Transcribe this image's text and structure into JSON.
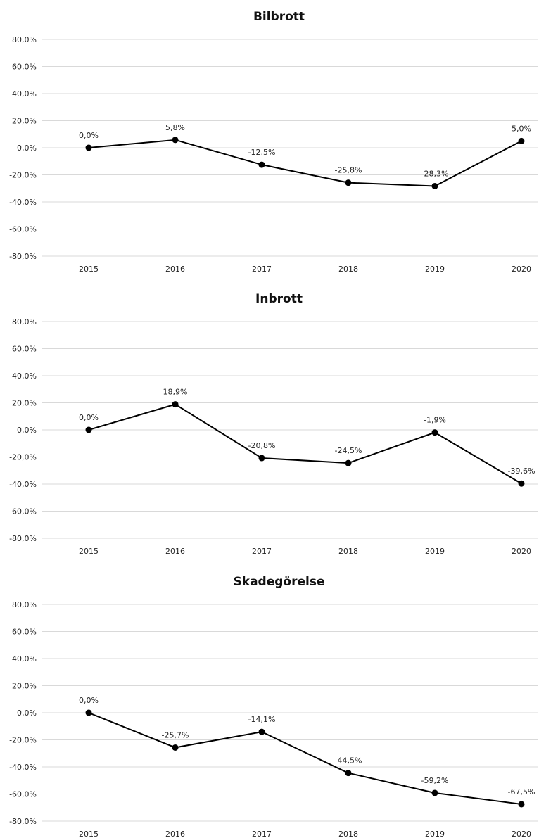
{
  "chart_data": [
    {
      "type": "line",
      "title": "Bilbrott",
      "categories": [
        "2015",
        "2016",
        "2017",
        "2018",
        "2019",
        "2020"
      ],
      "values": [
        0.0,
        5.8,
        -12.5,
        -25.8,
        -28.3,
        5.0
      ],
      "labels": [
        "0,0%",
        "5,8%",
        "-12,5%",
        "-25,8%",
        "-28,3%",
        "5,0%"
      ],
      "ylim": [
        -80,
        80
      ],
      "yticks": [
        "80,0%",
        "60,0%",
        "40,0%",
        "20,0%",
        "0,0%",
        "-20,0%",
        "-40,0%",
        "-60,0%",
        "-80,0%"
      ],
      "grid": true
    },
    {
      "type": "line",
      "title": "Inbrott",
      "categories": [
        "2015",
        "2016",
        "2017",
        "2018",
        "2019",
        "2020"
      ],
      "values": [
        0.0,
        18.9,
        -20.8,
        -24.5,
        -1.9,
        -39.6
      ],
      "labels": [
        "0,0%",
        "18,9%",
        "-20,8%",
        "-24,5%",
        "-1,9%",
        "-39,6%"
      ],
      "ylim": [
        -80,
        80
      ],
      "yticks": [
        "80,0%",
        "60,0%",
        "40,0%",
        "20,0%",
        "0,0%",
        "-20,0%",
        "-40,0%",
        "-60,0%",
        "-80,0%"
      ],
      "grid": true
    },
    {
      "type": "line",
      "title": "Skadegörelse",
      "categories": [
        "2015",
        "2016",
        "2017",
        "2018",
        "2019",
        "2020"
      ],
      "values": [
        0.0,
        -25.7,
        -14.1,
        -44.5,
        -59.2,
        -67.5
      ],
      "labels": [
        "0,0%",
        "-25,7%",
        "-14,1%",
        "-44,5%",
        "-59,2%",
        "-67,5%"
      ],
      "ylim": [
        -80,
        80
      ],
      "yticks": [
        "80,0%",
        "60,0%",
        "40,0%",
        "20,0%",
        "0,0%",
        "-20,0%",
        "-40,0%",
        "-60,0%",
        "-80,0%"
      ],
      "grid": true
    }
  ]
}
